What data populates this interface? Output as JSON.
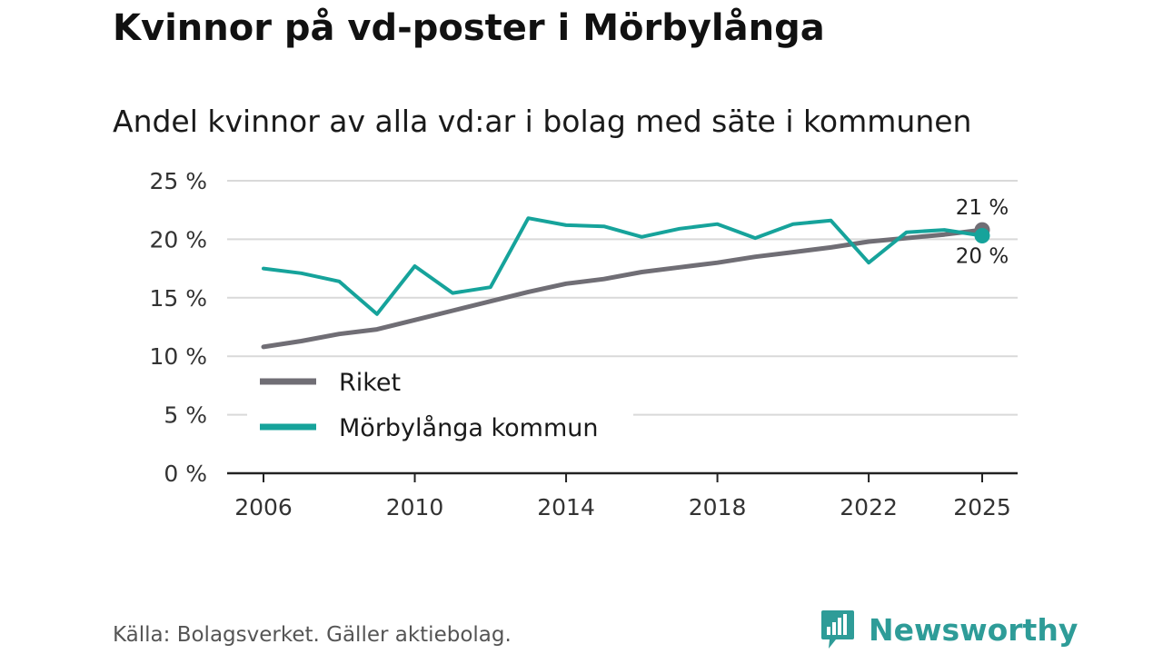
{
  "title": "Kvinnor på vd-poster i Mörbylånga",
  "subtitle": "Andel kvinnor av alla vd:ar i bolag med säte i kommunen",
  "source": "Källa: Bolagsverket. Gäller aktiebolag.",
  "brand": {
    "name": "Newsworthy",
    "icon": "newsworthy-logo-icon",
    "color": "#2e9c98"
  },
  "chart_data": {
    "type": "line",
    "title": "Kvinnor på vd-poster i Mörbylånga",
    "subtitle": "Andel kvinnor av alla vd:ar i bolag med säte i kommunen",
    "xlabel": "",
    "ylabel": "",
    "x": [
      2006,
      2007,
      2008,
      2009,
      2010,
      2011,
      2012,
      2013,
      2014,
      2015,
      2016,
      2017,
      2018,
      2019,
      2020,
      2021,
      2022,
      2023,
      2024,
      2025
    ],
    "x_ticks": [
      2006,
      2010,
      2014,
      2018,
      2022,
      2025
    ],
    "x_tick_labels": [
      "2006",
      "2010",
      "2014",
      "2018",
      "2022",
      "2025"
    ],
    "xlim": [
      2006,
      2025
    ],
    "ylim": [
      0,
      25
    ],
    "y_ticks": [
      0,
      5,
      10,
      15,
      20,
      25
    ],
    "y_tick_labels": [
      "0 %",
      "5 %",
      "10 %",
      "15 %",
      "20 %",
      "25 %"
    ],
    "grid": true,
    "legend_position": "bottom-left",
    "series": [
      {
        "name": "Riket",
        "color": "#706e75",
        "values": [
          10.8,
          11.3,
          11.9,
          12.3,
          13.1,
          13.9,
          14.7,
          15.5,
          16.2,
          16.6,
          17.2,
          17.6,
          18.0,
          18.5,
          18.9,
          19.3,
          19.8,
          20.1,
          20.4,
          20.8
        ],
        "end_label": "21 %",
        "end_label_position": "above"
      },
      {
        "name": "Mörbylånga kommun",
        "color": "#16a39b",
        "values": [
          17.5,
          17.1,
          16.4,
          13.6,
          17.7,
          15.4,
          15.9,
          21.8,
          21.2,
          21.1,
          20.2,
          20.9,
          21.3,
          20.1,
          21.3,
          21.6,
          18.0,
          20.6,
          20.8,
          20.3
        ],
        "end_label": "20 %",
        "end_label_position": "below"
      }
    ]
  }
}
